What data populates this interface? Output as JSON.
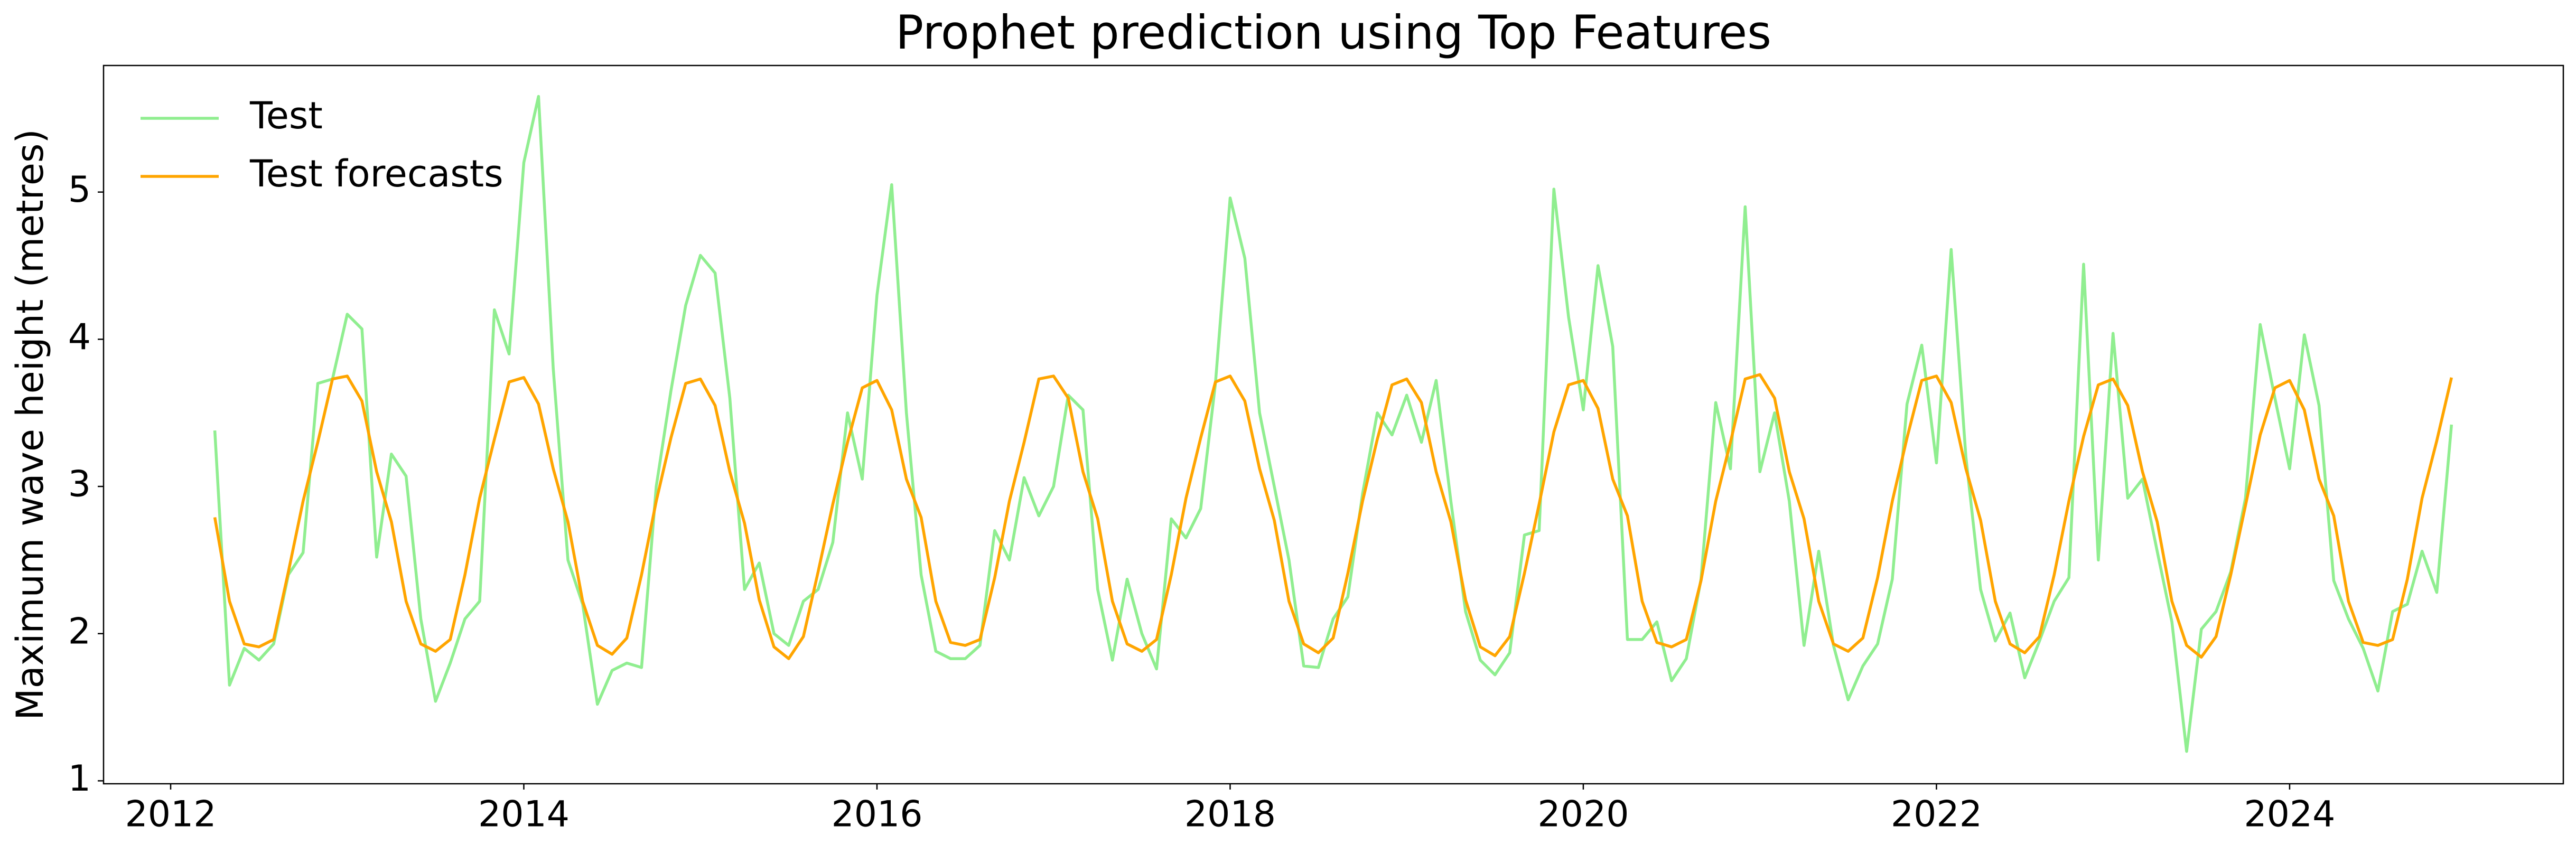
{
  "chart_data": {
    "type": "line",
    "title": "Prophet prediction using Top Features",
    "y_label": "Maximum wave height (metres)",
    "x": [
      2012.25,
      2012.3333,
      2012.4167,
      2012.5,
      2012.5833,
      2012.6667,
      2012.75,
      2012.8333,
      2012.9167,
      2013,
      2013.0833,
      2013.1667,
      2013.25,
      2013.3333,
      2013.4167,
      2013.5,
      2013.5833,
      2013.6667,
      2013.75,
      2013.8333,
      2013.9167,
      2014,
      2014.0833,
      2014.1667,
      2014.25,
      2014.3333,
      2014.4167,
      2014.5,
      2014.5833,
      2014.6667,
      2014.75,
      2014.8333,
      2014.9167,
      2015,
      2015.0833,
      2015.1667,
      2015.25,
      2015.3333,
      2015.4167,
      2015.5,
      2015.5833,
      2015.6667,
      2015.75,
      2015.8333,
      2015.9167,
      2016,
      2016.0833,
      2016.1667,
      2016.25,
      2016.3333,
      2016.4167,
      2016.5,
      2016.5833,
      2016.6667,
      2016.75,
      2016.8333,
      2016.9167,
      2017,
      2017.0833,
      2017.1667,
      2017.25,
      2017.3333,
      2017.4167,
      2017.5,
      2017.5833,
      2017.6667,
      2017.75,
      2017.8333,
      2017.9167,
      2018,
      2018.0833,
      2018.1667,
      2018.25,
      2018.3333,
      2018.4167,
      2018.5,
      2018.5833,
      2018.6667,
      2018.75,
      2018.8333,
      2018.9167,
      2019,
      2019.0833,
      2019.1667,
      2019.25,
      2019.3333,
      2019.4167,
      2019.5,
      2019.5833,
      2019.6667,
      2019.75,
      2019.8333,
      2019.9167,
      2020,
      2020.0833,
      2020.1667,
      2020.25,
      2020.3333,
      2020.4167,
      2020.5,
      2020.5833,
      2020.6667,
      2020.75,
      2020.8333,
      2020.9167,
      2021,
      2021.0833,
      2021.1667,
      2021.25,
      2021.3333,
      2021.4167,
      2021.5,
      2021.5833,
      2021.6667,
      2021.75,
      2021.8333,
      2021.9167,
      2022,
      2022.0833,
      2022.1667,
      2022.25,
      2022.3333,
      2022.4167,
      2022.5,
      2022.5833,
      2022.6667,
      2022.75,
      2022.8333,
      2022.9167,
      2023,
      2023.0833,
      2023.1667,
      2023.25,
      2023.3333,
      2023.4167,
      2023.5,
      2023.5833,
      2023.6667,
      2023.75,
      2023.8333,
      2023.9167,
      2024,
      2024.0833,
      2024.1667,
      2024.25,
      2024.3333,
      2024.4167,
      2024.5,
      2024.5833,
      2024.6667,
      2024.75,
      2024.8333,
      2024.9167
    ],
    "series": [
      {
        "name": "Test",
        "color": "#90ee90",
        "values": [
          3.38,
          1.65,
          1.9,
          1.82,
          1.93,
          2.4,
          2.55,
          3.7,
          3.73,
          4.17,
          4.07,
          2.52,
          3.22,
          3.07,
          2.1,
          1.54,
          1.8,
          2.1,
          2.22,
          4.2,
          3.9,
          5.2,
          5.65,
          3.8,
          2.5,
          2.2,
          1.52,
          1.75,
          1.8,
          1.77,
          3.0,
          3.65,
          4.23,
          4.57,
          4.45,
          3.6,
          2.3,
          2.48,
          2.0,
          1.92,
          2.22,
          2.3,
          2.62,
          3.5,
          3.05,
          4.3,
          5.05,
          3.5,
          2.4,
          1.88,
          1.83,
          1.83,
          1.92,
          2.7,
          2.5,
          3.06,
          2.8,
          3.0,
          3.62,
          3.52,
          2.3,
          1.82,
          2.37,
          2.0,
          1.76,
          2.78,
          2.65,
          2.85,
          3.7,
          4.96,
          4.55,
          3.5,
          3.0,
          2.5,
          1.78,
          1.77,
          2.1,
          2.25,
          2.95,
          3.5,
          3.35,
          3.62,
          3.3,
          3.72,
          2.9,
          2.15,
          1.82,
          1.72,
          1.87,
          2.67,
          2.7,
          5.02,
          4.15,
          3.52,
          4.5,
          3.95,
          1.96,
          1.96,
          2.08,
          1.68,
          1.83,
          2.37,
          3.57,
          3.12,
          4.9,
          3.1,
          3.5,
          2.9,
          1.92,
          2.56,
          1.92,
          1.55,
          1.78,
          1.93,
          2.37,
          3.56,
          3.96,
          3.16,
          4.61,
          3.2,
          2.3,
          1.95,
          2.14,
          1.7,
          1.95,
          2.22,
          2.38,
          4.51,
          2.5,
          4.04,
          2.92,
          3.05,
          2.56,
          2.08,
          1.2,
          2.03,
          2.15,
          2.42,
          2.92,
          4.1,
          3.6,
          3.12,
          4.03,
          3.55,
          2.36,
          2.1,
          1.9,
          1.61,
          2.15,
          2.2,
          2.56,
          2.28,
          3.42
        ]
      },
      {
        "name": "Test forecasts",
        "color": "#ffa500",
        "values": [
          2.79,
          2.22,
          1.93,
          1.91,
          1.96,
          2.42,
          2.9,
          3.3,
          3.73,
          3.75,
          3.58,
          3.1,
          2.76,
          2.22,
          1.93,
          1.88,
          1.96,
          2.4,
          2.92,
          3.32,
          3.71,
          3.74,
          3.56,
          3.12,
          2.76,
          2.22,
          1.92,
          1.86,
          1.97,
          2.4,
          2.9,
          3.33,
          3.7,
          3.73,
          3.55,
          3.1,
          2.75,
          2.23,
          1.91,
          1.83,
          1.98,
          2.42,
          2.88,
          3.3,
          3.67,
          3.72,
          3.52,
          3.05,
          2.79,
          2.22,
          1.94,
          1.92,
          1.96,
          2.38,
          2.9,
          3.3,
          3.73,
          3.75,
          3.6,
          3.1,
          2.78,
          2.22,
          1.93,
          1.88,
          1.96,
          2.4,
          2.92,
          3.33,
          3.71,
          3.75,
          3.58,
          3.12,
          2.77,
          2.22,
          1.93,
          1.87,
          1.97,
          2.41,
          2.9,
          3.32,
          3.69,
          3.73,
          3.57,
          3.1,
          2.76,
          2.23,
          1.91,
          1.85,
          1.98,
          2.41,
          2.88,
          3.37,
          3.69,
          3.72,
          3.53,
          3.05,
          2.8,
          2.22,
          1.94,
          1.91,
          1.96,
          2.36,
          2.9,
          3.3,
          3.73,
          3.76,
          3.6,
          3.1,
          2.78,
          2.22,
          1.93,
          1.88,
          1.97,
          2.38,
          2.9,
          3.33,
          3.72,
          3.75,
          3.57,
          3.12,
          2.77,
          2.22,
          1.93,
          1.87,
          1.98,
          2.4,
          2.9,
          3.34,
          3.69,
          3.73,
          3.55,
          3.1,
          2.76,
          2.22,
          1.92,
          1.84,
          1.98,
          2.4,
          2.87,
          3.35,
          3.67,
          3.72,
          3.52,
          3.05,
          2.8,
          2.22,
          1.94,
          1.92,
          1.96,
          2.37,
          2.92,
          3.31,
          3.74
        ]
      }
    ],
    "xlim": [
      2011.62,
      2025.55
    ],
    "xticks": [
      2012,
      2014,
      2016,
      2018,
      2020,
      2022,
      2024
    ],
    "ylim": [
      0.98,
      5.86
    ],
    "yticks": [
      1,
      2,
      3,
      4,
      5
    ],
    "legend": "upper left",
    "grid": false
  }
}
